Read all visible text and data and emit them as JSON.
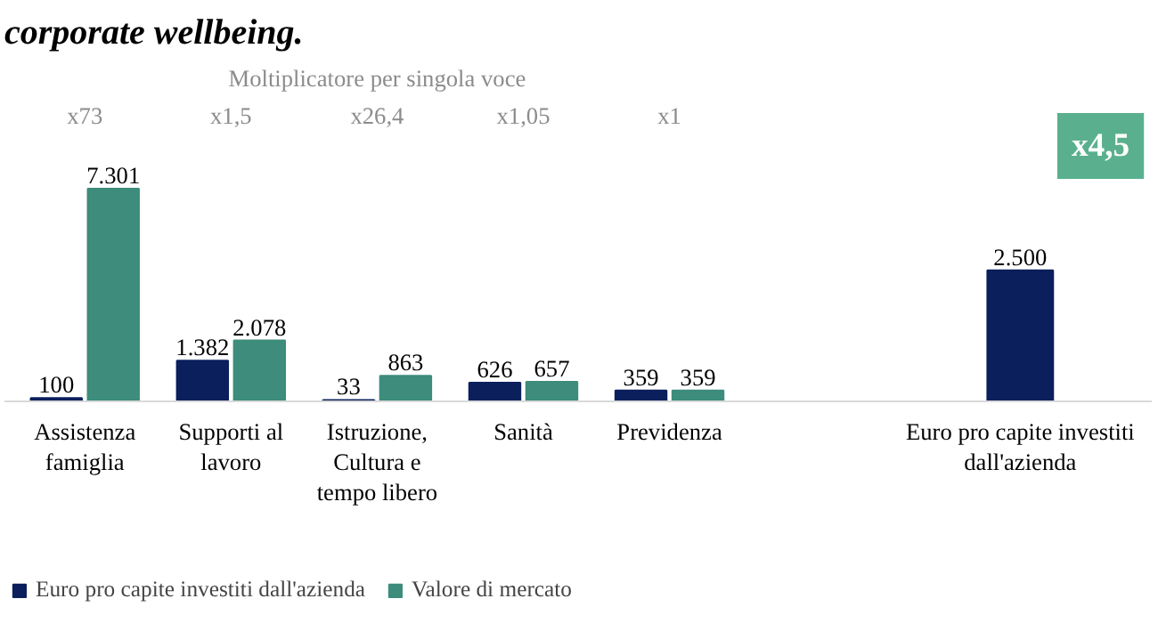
{
  "chart_data": [
    {
      "type": "bar",
      "title": "corporate wellbeing.",
      "categories": [
        "Assistenza famiglia",
        "Supporti al lavoro",
        "Istruzione, Cultura e tempo libero",
        "Sanità",
        "Previdenza"
      ],
      "series": [
        {
          "name": "Euro pro capite investiti dall'azienda",
          "color": "#0b1f5c",
          "values": [
            100,
            1382,
            33,
            626,
            359
          ],
          "value_labels": [
            "100",
            "1.382",
            "33",
            "626",
            "359"
          ]
        },
        {
          "name": "Valore di mercato",
          "color": "#3d8c7c",
          "values": [
            7301,
            2078,
            863,
            657,
            359
          ],
          "value_labels": [
            "7.301",
            "2.078",
            "863",
            "657",
            "359"
          ]
        }
      ],
      "annotations": [
        "Moltiplicatore per singola voce",
        "x73",
        "x1,5",
        "x26,4",
        "x1,05",
        "x1"
      ],
      "legend": "bottom",
      "grid": false
    },
    {
      "type": "bar",
      "categories": [
        "Euro pro capite investiti dall'azienda"
      ],
      "series": [
        {
          "color": "#0b1f5c",
          "values": [
            2500
          ],
          "value_labels": [
            "2.500"
          ]
        }
      ],
      "annotations": [
        "x4,5"
      ],
      "grid": false
    }
  ]
}
